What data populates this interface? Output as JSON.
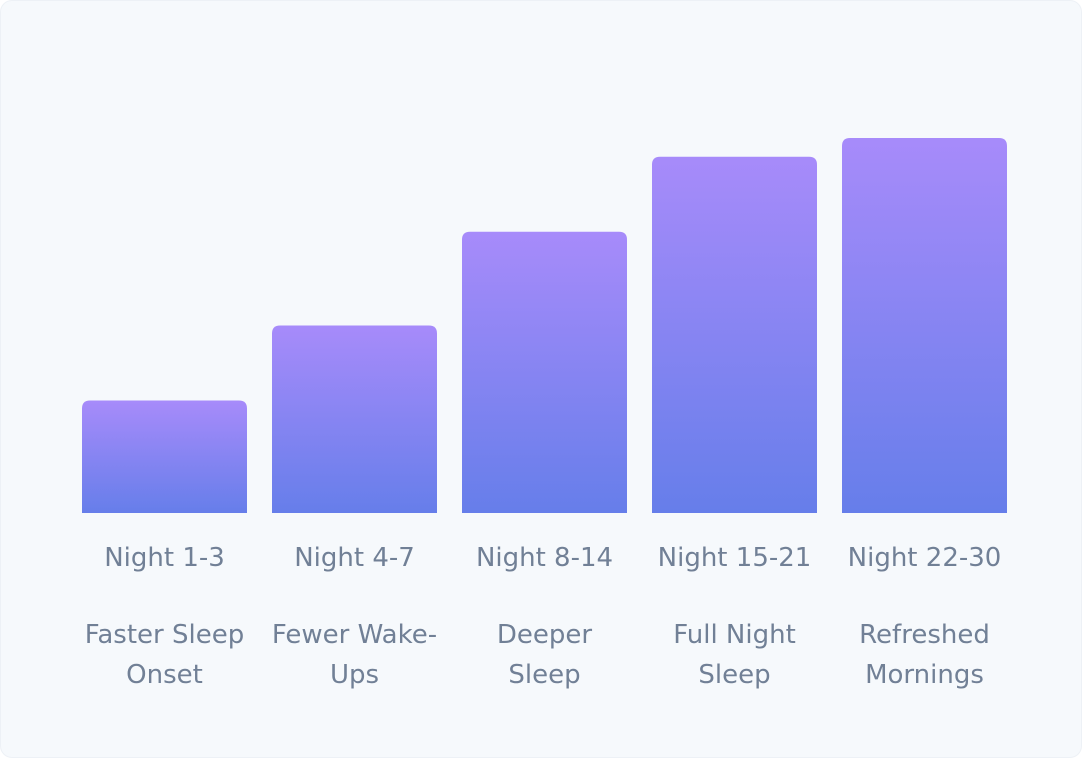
{
  "chart_data": {
    "type": "bar",
    "categories": [
      "Night 1-3",
      "Night 4-7",
      "Night 8-14",
      "Night 15-21",
      "Night 22-30"
    ],
    "descriptions": [
      "Faster Sleep Onset",
      "Fewer Wake-Ups",
      "Deeper Sleep",
      "Full Night Sleep",
      "Refreshed Mornings"
    ],
    "values": [
      30,
      50,
      75,
      95,
      100
    ],
    "ylim": [
      0,
      100
    ],
    "color_top": "#a78bfa",
    "color_bottom": "#667eea"
  }
}
